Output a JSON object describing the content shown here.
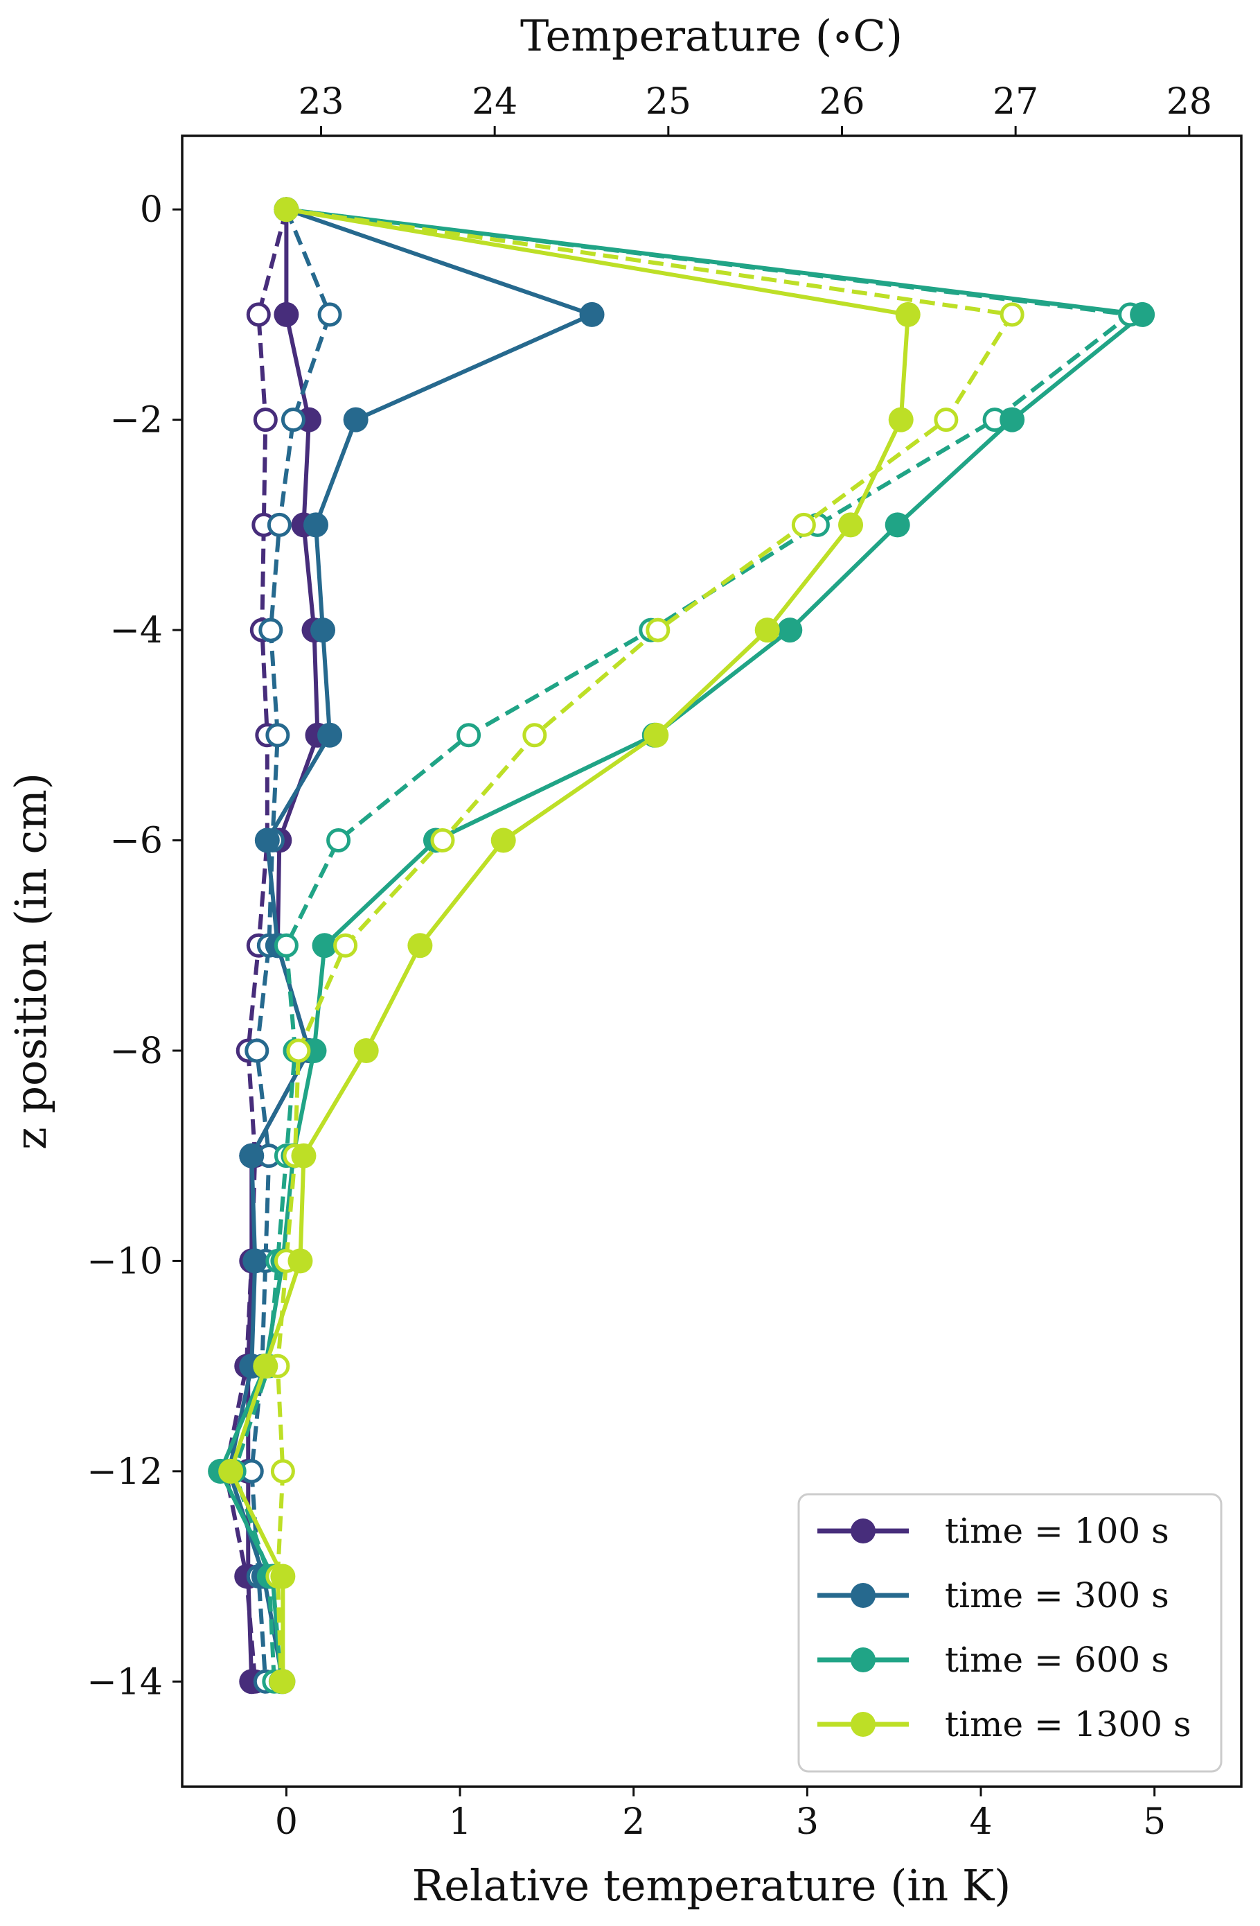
{
  "chart_data": {
    "type": "line",
    "xlabel": "Relative temperature (in K)",
    "ylabel": "z position (in cm)",
    "x2label": "Temperature (∘C)",
    "xlim": [
      -0.6,
      5.5
    ],
    "ylim": [
      -15.0,
      0.7
    ],
    "x2_offset": 22.8,
    "xticks": [
      0,
      1,
      2,
      3,
      4,
      5
    ],
    "xtick_labels": [
      "0",
      "1",
      "2",
      "3",
      "4",
      "5"
    ],
    "yticks": [
      0,
      -2,
      -4,
      -6,
      -8,
      -10,
      -12,
      -14
    ],
    "ytick_labels": [
      "0",
      "−2",
      "−4",
      "−6",
      "−8",
      "−10",
      "−12",
      "−14"
    ],
    "x2ticks": [
      23,
      24,
      25,
      26,
      27,
      28
    ],
    "x2tick_labels": [
      "23",
      "24",
      "25",
      "26",
      "27",
      "28"
    ],
    "z": [
      0,
      -1,
      -2,
      -3,
      -4,
      -5,
      -6,
      -7,
      -8,
      -9,
      -10,
      -11,
      -12,
      -13,
      -14
    ],
    "legend_position": "lower-right",
    "series": [
      {
        "name": "time = 100 s",
        "color": "#472d7b",
        "solid": [
          0.0,
          0.0,
          0.13,
          0.1,
          0.16,
          0.18,
          -0.04,
          -0.05,
          0.13,
          -0.2,
          -0.2,
          -0.22,
          -0.22,
          -0.22,
          -0.2
        ],
        "dashed": [
          0.0,
          -0.16,
          -0.12,
          -0.13,
          -0.14,
          -0.11,
          -0.11,
          -0.16,
          -0.22,
          -0.18,
          -0.2,
          -0.23,
          -0.35,
          -0.23,
          -0.18
        ]
      },
      {
        "name": "time = 300 s",
        "color": "#26698e",
        "solid": [
          0.0,
          1.76,
          0.4,
          0.17,
          0.21,
          0.25,
          -0.11,
          -0.05,
          0.13,
          -0.2,
          -0.18,
          -0.2,
          -0.33,
          -0.13,
          -0.02
        ],
        "dashed": [
          0.0,
          0.25,
          0.04,
          -0.04,
          -0.09,
          -0.05,
          -0.08,
          -0.1,
          -0.17,
          -0.1,
          -0.12,
          -0.14,
          -0.2,
          -0.16,
          -0.12
        ]
      },
      {
        "name": "time = 600 s",
        "color": "#20a486",
        "solid": [
          0.0,
          4.93,
          4.18,
          3.52,
          2.9,
          2.12,
          0.86,
          0.22,
          0.16,
          0.04,
          -0.02,
          -0.12,
          -0.38,
          -0.08,
          -0.03
        ],
        "dashed": [
          0.0,
          4.86,
          4.08,
          3.06,
          2.1,
          1.05,
          0.3,
          0.0,
          0.05,
          0.0,
          -0.05,
          -0.1,
          -0.3,
          -0.1,
          -0.07
        ]
      },
      {
        "name": "time = 1300 s",
        "color": "#bddf26",
        "solid": [
          0.0,
          3.58,
          3.54,
          3.25,
          2.77,
          2.13,
          1.25,
          0.77,
          0.46,
          0.1,
          0.08,
          -0.12,
          -0.32,
          -0.02,
          -0.02
        ],
        "dashed": [
          0.0,
          4.18,
          3.8,
          2.98,
          2.14,
          1.43,
          0.9,
          0.34,
          0.07,
          0.05,
          0.0,
          -0.05,
          -0.02,
          -0.05,
          -0.03
        ]
      }
    ]
  }
}
